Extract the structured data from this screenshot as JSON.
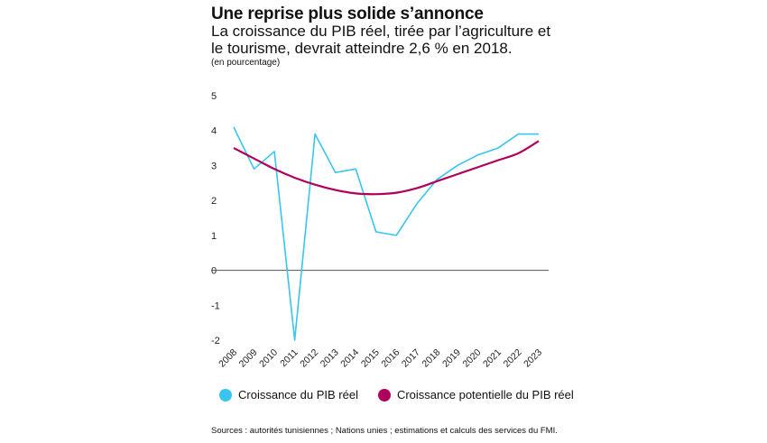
{
  "title": "Une reprise plus solide s’annonce",
  "subtitle": "La croissance du PIB réel, tirée par l’agriculture et le tourisme, devrait atteindre 2,6 % en 2018.",
  "unit_label": "(en pourcentage)",
  "source": "Sources : autorités tunisiennes ; Nations unies ; estimations et calculs des services du FMI.",
  "chart_data": {
    "type": "line",
    "title": "Une reprise plus solide s’annonce",
    "x": [
      "2008",
      "2009",
      "2010",
      "2011",
      "2012",
      "2013",
      "2014",
      "2015",
      "2016",
      "2017",
      "2018",
      "2019",
      "2020",
      "2021",
      "2022",
      "2023"
    ],
    "ylim": [
      -2,
      5
    ],
    "yticks": [
      5,
      4,
      3,
      2,
      1,
      0,
      -1,
      -2
    ],
    "grid": false,
    "legend_position": "bottom",
    "series": [
      {
        "name": "Croissance du PIB réel",
        "color": "#38c5ef",
        "values": [
          4.1,
          2.9,
          3.4,
          -2.0,
          3.9,
          2.8,
          2.9,
          1.1,
          1.0,
          1.9,
          2.6,
          3.0,
          3.3,
          3.5,
          3.9,
          3.9
        ]
      },
      {
        "name": "Croissance potentielle du PIB réel",
        "color": "#b0005e",
        "values": [
          3.5,
          3.2,
          2.9,
          2.65,
          2.45,
          2.3,
          2.2,
          2.18,
          2.22,
          2.35,
          2.55,
          2.75,
          2.95,
          3.15,
          3.35,
          3.7
        ]
      }
    ]
  }
}
